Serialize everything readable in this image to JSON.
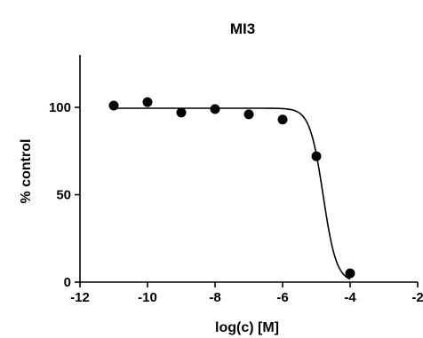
{
  "chart_data": {
    "type": "scatter",
    "title": "MI3",
    "xlabel": "log(c) [M]",
    "ylabel": "% control",
    "xlim": [
      -12,
      -2
    ],
    "ylim": [
      0,
      130
    ],
    "x_ticks": [
      -12,
      -10,
      -8,
      -6,
      -4,
      -2
    ],
    "x_tick_labels": [
      "-12",
      "-10",
      "-8",
      "-6",
      "-4",
      "-2"
    ],
    "y_ticks": [
      0,
      50,
      100
    ],
    "y_tick_labels": [
      "0",
      "50",
      "100"
    ],
    "grid": false,
    "series": [
      {
        "x": [
          -11,
          -10,
          -9,
          -8,
          -7,
          -6,
          -5,
          -4
        ],
        "y": [
          101,
          103,
          97,
          99,
          96,
          93,
          72,
          5
        ]
      }
    ],
    "fit_curve": {
      "type": "sigmoidal-dose-response",
      "top": 99.5,
      "bottom": 0,
      "log_ic50": -4.8,
      "hill_slope": -2.2
    }
  }
}
